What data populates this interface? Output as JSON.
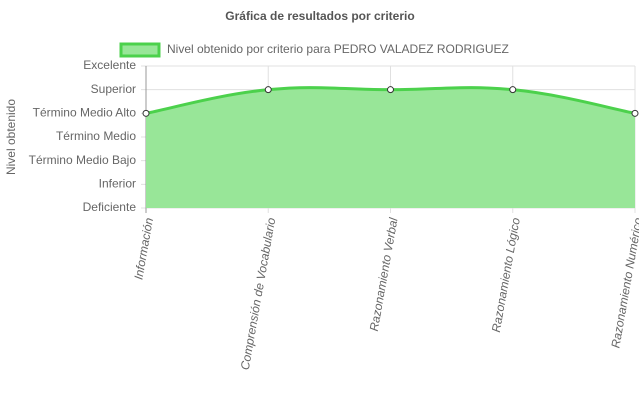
{
  "chart_data": {
    "type": "area",
    "title": "Gráfica de resultados por criterio",
    "y_label": "Nivel obtenido",
    "categories": [
      "Información",
      "Comprensión de Vocabulario",
      "Razonamiento Verbal",
      "Razonamiento Lógico",
      "Razonamiento Numérico"
    ],
    "series": [
      {
        "name": "Nivel obtenido por criterio para PEDRO VALADEZ RODRIGUEZ",
        "color": "#4cd14c",
        "fill_color": "#98e698",
        "values": [
          4,
          5,
          5,
          5,
          4
        ]
      }
    ],
    "ylim": [
      0,
      6
    ],
    "yticks": [
      {
        "value": 0,
        "label": "Deficiente"
      },
      {
        "value": 1,
        "label": "Inferior"
      },
      {
        "value": 2,
        "label": "Término Medio Bajo"
      },
      {
        "value": 3,
        "label": "Término Medio"
      },
      {
        "value": 4,
        "label": "Término Medio Alto"
      },
      {
        "value": 5,
        "label": "Superior"
      },
      {
        "value": 6,
        "label": "Excelente"
      }
    ],
    "grid": true,
    "legend": "top"
  }
}
